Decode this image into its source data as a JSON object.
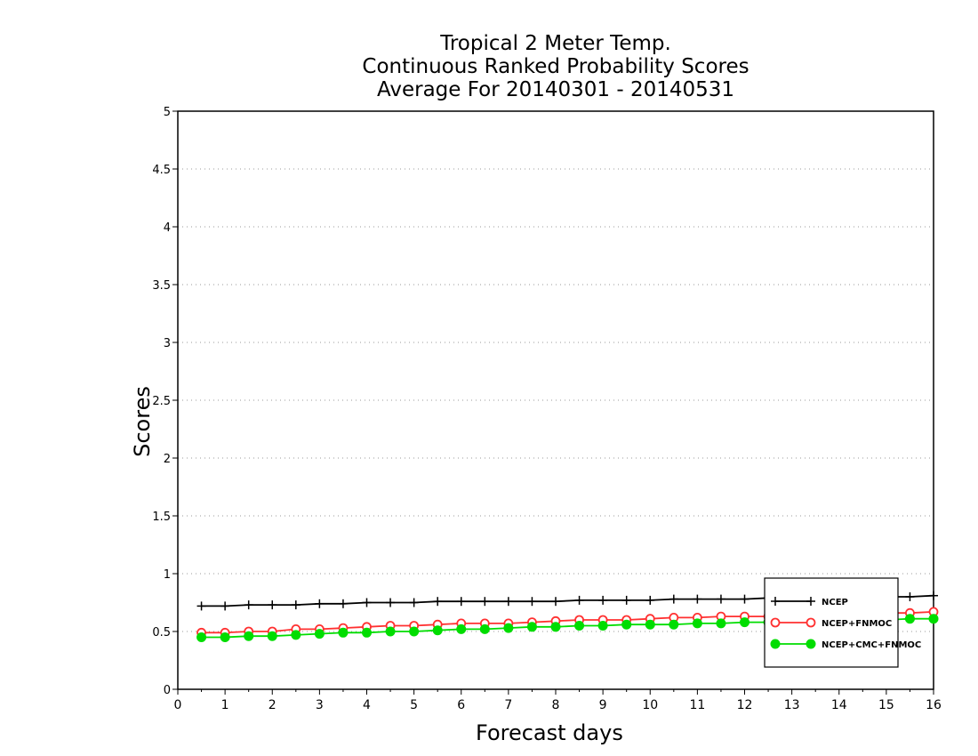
{
  "chart_data": {
    "type": "line",
    "title": [
      "Tropical 2 Meter Temp.",
      "Continuous Ranked Probability Scores",
      "Average For 20140301 - 20140531"
    ],
    "xlabel": "Forecast days",
    "ylabel": "Scores",
    "xlim": [
      0,
      16
    ],
    "ylim": [
      0,
      5
    ],
    "xticks": [
      "0",
      "1",
      "2",
      "3",
      "4",
      "5",
      "6",
      "7",
      "8",
      "9",
      "10",
      "11",
      "12",
      "13",
      "14",
      "15",
      "16"
    ],
    "yticks": [
      "0",
      "0.5",
      "1",
      "1.5",
      "2",
      "2.5",
      "3",
      "3.5",
      "4",
      "4.5",
      "5"
    ],
    "grid": "horizontal-dotted",
    "legend_position": "bottom-right",
    "x": [
      0.5,
      1,
      1.5,
      2,
      2.5,
      3,
      3.5,
      4,
      4.5,
      5,
      5.5,
      6,
      6.5,
      7,
      7.5,
      8,
      8.5,
      9,
      9.5,
      10,
      10.5,
      11,
      11.5,
      12,
      12.5,
      13,
      13.5,
      14,
      14.5,
      15,
      15.5,
      16
    ],
    "series": [
      {
        "name": "NCEP",
        "color": "#000000",
        "marker": "plus",
        "values": [
          0.72,
          0.72,
          0.73,
          0.73,
          0.73,
          0.74,
          0.74,
          0.75,
          0.75,
          0.75,
          0.76,
          0.76,
          0.76,
          0.76,
          0.76,
          0.76,
          0.77,
          0.77,
          0.77,
          0.77,
          0.78,
          0.78,
          0.78,
          0.78,
          0.79,
          0.79,
          0.79,
          0.79,
          0.8,
          0.8,
          0.8,
          0.81
        ]
      },
      {
        "name": "NCEP+FNMOC",
        "color": "#ff3030",
        "marker": "open-circle",
        "values": [
          0.49,
          0.49,
          0.5,
          0.5,
          0.52,
          0.52,
          0.53,
          0.54,
          0.55,
          0.55,
          0.56,
          0.57,
          0.57,
          0.57,
          0.58,
          0.59,
          0.6,
          0.6,
          0.6,
          0.61,
          0.62,
          0.62,
          0.63,
          0.63,
          0.63,
          0.64,
          0.64,
          0.65,
          0.65,
          0.66,
          0.66,
          0.67
        ]
      },
      {
        "name": "NCEP+CMC+FNMOC",
        "color": "#00dd00",
        "marker": "filled-circle",
        "values": [
          0.45,
          0.45,
          0.46,
          0.46,
          0.47,
          0.48,
          0.49,
          0.49,
          0.5,
          0.5,
          0.51,
          0.52,
          0.52,
          0.53,
          0.54,
          0.54,
          0.55,
          0.55,
          0.56,
          0.56,
          0.56,
          0.57,
          0.57,
          0.58,
          0.58,
          0.58,
          0.59,
          0.59,
          0.6,
          0.6,
          0.61,
          0.61
        ]
      }
    ]
  }
}
